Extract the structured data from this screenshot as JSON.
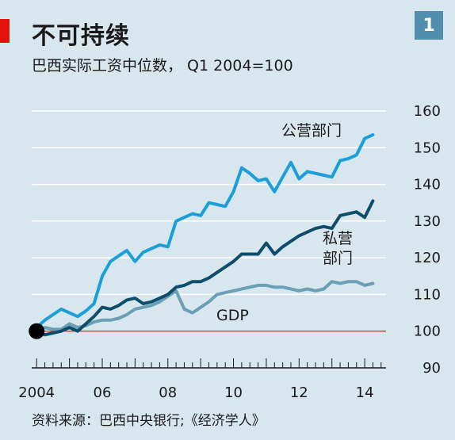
{
  "header": {
    "title": "不可持续",
    "subtitle": "巴西实际工资中位数， Q1 2004=100",
    "badge": "1"
  },
  "footer": {
    "source": "资料来源：巴西中央银行;《经济学人》"
  },
  "colors": {
    "background": "#d8e6ee",
    "public": "#1c9fd9",
    "private": "#0e4d6b",
    "gdp": "#6a9fb5",
    "baseline": "#d9251d",
    "accent": "#e3120b",
    "badge": "#4f8fad"
  },
  "chart_data": {
    "type": "line",
    "x_unit": "year",
    "xlim": [
      2003.85,
      2014.65
    ],
    "ylim": [
      90,
      160
    ],
    "y_ticks": [
      90,
      100,
      110,
      120,
      130,
      140,
      150,
      160
    ],
    "x_ticks": [
      {
        "value": 2004,
        "label": "2004"
      },
      {
        "value": 2006,
        "label": "06"
      },
      {
        "value": 2008,
        "label": "08"
      },
      {
        "value": 2010,
        "label": "10"
      },
      {
        "value": 2012,
        "label": "12"
      },
      {
        "value": 2014,
        "label": "14"
      }
    ],
    "baseline": 100,
    "start_marker": {
      "x": 2004,
      "y": 100
    },
    "series": [
      {
        "name": "公营部门",
        "label_lines": [
          "公营部门"
        ],
        "color_key": "public",
        "x": [
          2004.0,
          2004.25,
          2004.5,
          2004.75,
          2005.0,
          2005.25,
          2005.5,
          2005.75,
          2006.0,
          2006.25,
          2006.5,
          2006.75,
          2007.0,
          2007.25,
          2007.5,
          2007.75,
          2008.0,
          2008.25,
          2008.5,
          2008.75,
          2009.0,
          2009.25,
          2009.5,
          2009.75,
          2010.0,
          2010.25,
          2010.5,
          2010.75,
          2011.0,
          2011.25,
          2011.5,
          2011.75,
          2012.0,
          2012.25,
          2012.5,
          2012.75,
          2013.0,
          2013.25,
          2013.5,
          2013.75,
          2014.0,
          2014.25
        ],
        "y": [
          101,
          103,
          104.5,
          106,
          105,
          104,
          105.5,
          107.5,
          115,
          119,
          120.5,
          122,
          119,
          121.5,
          122.5,
          123.5,
          123,
          130,
          131,
          132,
          131.5,
          135,
          134.5,
          134,
          138,
          144.5,
          143,
          141,
          141.5,
          138,
          142,
          146,
          141.5,
          143.5,
          143,
          142.5,
          142,
          146.5,
          147,
          148,
          152.5,
          153.5
        ]
      },
      {
        "name": "私营部门",
        "label_lines": [
          "私营",
          "部门"
        ],
        "color_key": "private",
        "x": [
          2004.0,
          2004.25,
          2004.5,
          2004.75,
          2005.0,
          2005.25,
          2005.5,
          2005.75,
          2006.0,
          2006.25,
          2006.5,
          2006.75,
          2007.0,
          2007.25,
          2007.5,
          2007.75,
          2008.0,
          2008.25,
          2008.5,
          2008.75,
          2009.0,
          2009.25,
          2009.5,
          2009.75,
          2010.0,
          2010.25,
          2010.5,
          2010.75,
          2011.0,
          2011.25,
          2011.5,
          2011.75,
          2012.0,
          2012.25,
          2012.5,
          2012.75,
          2013.0,
          2013.25,
          2013.5,
          2013.75,
          2014.0,
          2014.25
        ],
        "y": [
          100,
          99,
          99.5,
          100,
          101,
          100,
          102,
          104,
          106.5,
          106,
          107,
          108.5,
          109,
          107.5,
          108,
          109,
          110,
          112,
          112.5,
          113.5,
          113.5,
          114.5,
          116,
          117.5,
          119,
          121,
          121,
          121,
          124,
          121,
          123,
          124.5,
          126,
          127,
          128,
          128.5,
          128,
          131.5,
          132,
          132.5,
          131,
          135.5
        ]
      },
      {
        "name": "GDP",
        "label_lines": [
          "GDP"
        ],
        "color_key": "gdp",
        "x": [
          2004.0,
          2004.25,
          2004.5,
          2004.75,
          2005.0,
          2005.25,
          2005.5,
          2005.75,
          2006.0,
          2006.25,
          2006.5,
          2006.75,
          2007.0,
          2007.25,
          2007.5,
          2007.75,
          2008.0,
          2008.25,
          2008.5,
          2008.75,
          2009.0,
          2009.25,
          2009.5,
          2009.75,
          2010.0,
          2010.25,
          2010.5,
          2010.75,
          2011.0,
          2011.25,
          2011.5,
          2011.75,
          2012.0,
          2012.25,
          2012.5,
          2012.75,
          2013.0,
          2013.25,
          2013.5,
          2013.75,
          2014.0,
          2014.25
        ],
        "y": [
          100,
          101,
          100.5,
          100.5,
          102,
          101,
          101.5,
          102.5,
          103,
          103,
          103.5,
          104.5,
          106,
          106.5,
          107,
          108,
          109.5,
          111,
          106,
          105,
          106.5,
          108,
          110,
          110.5,
          111,
          111.5,
          112,
          112.5,
          112.5,
          112,
          112,
          111.5,
          111,
          111.5,
          111,
          111.5,
          113.5,
          113,
          113.5,
          113.5,
          112.5,
          113
        ]
      }
    ]
  }
}
